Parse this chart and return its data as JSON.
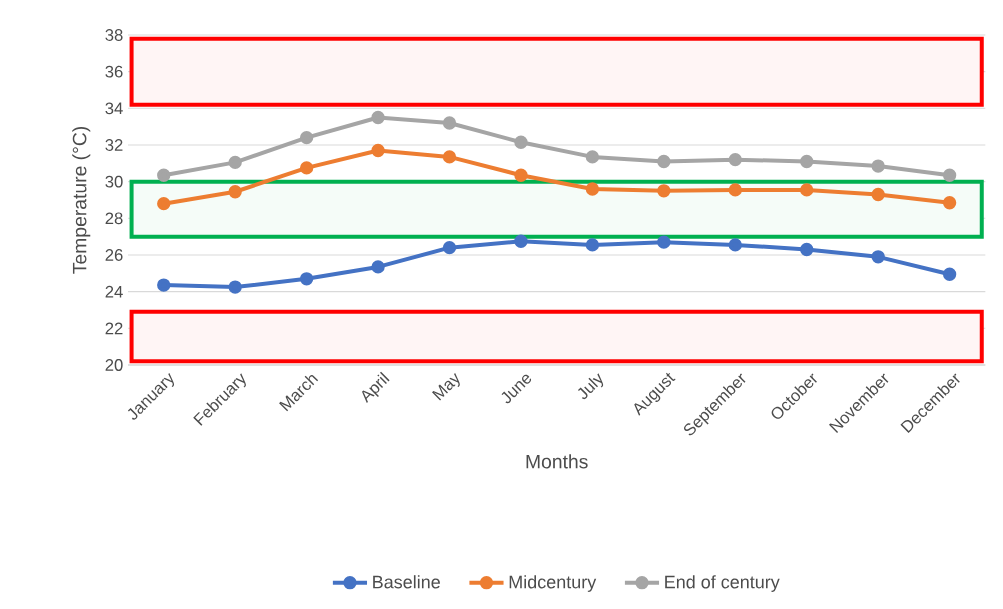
{
  "chart_data": {
    "type": "line",
    "xlabel": "Months",
    "ylabel": "Temperature (°C)",
    "categories": [
      "January",
      "February",
      "March",
      "April",
      "May",
      "June",
      "July",
      "August",
      "September",
      "October",
      "November",
      "December"
    ],
    "series": [
      {
        "name": "Baseline",
        "color": "#4472c4",
        "values": [
          24.36,
          24.25,
          24.7,
          25.35,
          26.4,
          26.75,
          26.55,
          26.7,
          26.55,
          26.3,
          25.9,
          24.95
        ]
      },
      {
        "name": "Midcentury",
        "color": "#ed7d31",
        "values": [
          28.8,
          29.45,
          30.75,
          31.7,
          31.35,
          30.35,
          29.6,
          29.5,
          29.55,
          29.55,
          29.3,
          28.85
        ]
      },
      {
        "name": "End of century",
        "color": "#a5a5a5",
        "values": [
          30.35,
          31.05,
          32.4,
          33.5,
          33.2,
          32.15,
          31.35,
          31.1,
          31.2,
          31.1,
          30.85,
          30.35
        ]
      }
    ],
    "ylim": [
      20,
      38
    ],
    "yticks": [
      20,
      22,
      24,
      26,
      28,
      30,
      32,
      34,
      36,
      38
    ],
    "bands": [
      {
        "axis": "y",
        "from": 34.2,
        "to": 37.8,
        "color": "#ff0000"
      },
      {
        "axis": "y",
        "from": 27,
        "to": 30,
        "color": "#00b050"
      },
      {
        "axis": "y",
        "from": 20.2,
        "to": 22.9,
        "color": "#ff0000"
      }
    ],
    "grid": "y",
    "legend": "bottom",
    "marker": "circle",
    "line_style": "solid"
  }
}
